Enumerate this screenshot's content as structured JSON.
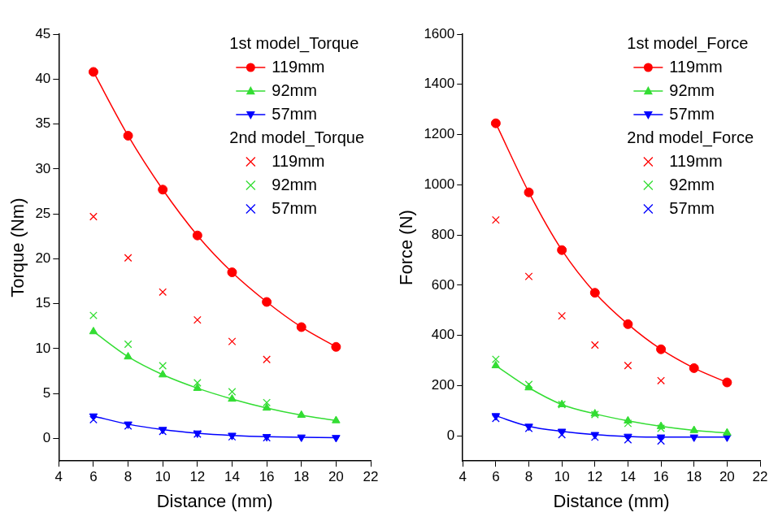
{
  "chart_data": [
    {
      "type": "line",
      "x_label": "Distance (mm)",
      "y_label": "Torque (Nm)",
      "xlim": [
        4,
        22
      ],
      "xticks": [
        4,
        6,
        8,
        10,
        12,
        14,
        16,
        18,
        20,
        22
      ],
      "ylim": [
        -2.5,
        45
      ],
      "yticks": [
        0,
        5,
        10,
        15,
        20,
        25,
        30,
        35,
        40,
        45
      ],
      "grid": false,
      "series": [
        {
          "name": "119mm",
          "group": "1st model_Torque",
          "color": "#ff0000",
          "marker": "circle",
          "line_style": "solid",
          "x": [
            6,
            8,
            10,
            12,
            14,
            16,
            18,
            20
          ],
          "values": [
            40.8,
            33.7,
            27.7,
            22.6,
            18.5,
            15.2,
            12.4,
            10.2
          ]
        },
        {
          "name": "92mm",
          "group": "1st model_Torque",
          "color": "#33dd33",
          "marker": "triangle",
          "line_style": "solid",
          "x": [
            6,
            8,
            10,
            12,
            14,
            16,
            18,
            20
          ],
          "values": [
            11.9,
            9.1,
            7.1,
            5.6,
            4.4,
            3.4,
            2.6,
            2.0
          ]
        },
        {
          "name": "57mm",
          "group": "1st model_Torque",
          "color": "#0000ff",
          "marker": "triangle_down",
          "line_style": "solid",
          "x": [
            6,
            8,
            10,
            12,
            14,
            16,
            18,
            20
          ],
          "values": [
            2.5,
            1.6,
            1.0,
            0.6,
            0.35,
            0.2,
            0.15,
            0.1
          ]
        },
        {
          "name": "119mm",
          "group": "2nd model_Torque",
          "color": "#ff0000",
          "marker": "cross",
          "line_style": "none",
          "x": [
            6,
            8,
            10,
            12,
            14,
            16
          ],
          "values": [
            24.7,
            20.1,
            16.3,
            13.2,
            10.8,
            8.8
          ]
        },
        {
          "name": "92mm",
          "group": "2nd model_Torque",
          "color": "#33dd33",
          "marker": "cross",
          "line_style": "none",
          "x": [
            6,
            8,
            10,
            12,
            14,
            16
          ],
          "values": [
            13.7,
            10.5,
            8.1,
            6.2,
            5.2,
            4.0
          ]
        },
        {
          "name": "57mm",
          "group": "2nd model_Torque",
          "color": "#0000ff",
          "marker": "cross",
          "line_style": "none",
          "x": [
            6,
            8,
            10,
            12,
            14,
            16
          ],
          "values": [
            2.1,
            1.4,
            0.8,
            0.5,
            0.2,
            0.1
          ]
        }
      ]
    },
    {
      "type": "line",
      "x_label": "Distance (mm)",
      "y_label": "Force (N)",
      "xlim": [
        4,
        22
      ],
      "xticks": [
        4,
        6,
        8,
        10,
        12,
        14,
        16,
        18,
        20,
        22
      ],
      "ylim": [
        -100,
        1600
      ],
      "yticks": [
        0,
        200,
        400,
        600,
        800,
        1000,
        1200,
        1400,
        1600
      ],
      "grid": false,
      "series": [
        {
          "name": "119mm",
          "group": "1st model_Force",
          "color": "#ff0000",
          "marker": "circle",
          "line_style": "solid",
          "x": [
            6,
            8,
            10,
            12,
            14,
            16,
            18,
            20
          ],
          "values": [
            1245,
            970,
            740,
            570,
            445,
            345,
            270,
            213
          ]
        },
        {
          "name": "92mm",
          "group": "1st model_Force",
          "color": "#33dd33",
          "marker": "triangle",
          "line_style": "solid",
          "x": [
            6,
            8,
            10,
            12,
            14,
            16,
            18,
            20
          ],
          "values": [
            280,
            192,
            125,
            88,
            60,
            38,
            22,
            12
          ]
        },
        {
          "name": "57mm",
          "group": "1st model_Force",
          "color": "#0000ff",
          "marker": "triangle_down",
          "line_style": "solid",
          "x": [
            6,
            8,
            10,
            12,
            14,
            16,
            18,
            20
          ],
          "values": [
            80,
            38,
            18,
            5,
            -2,
            -5,
            -5,
            -5
          ]
        },
        {
          "name": "119mm",
          "group": "2nd model_Force",
          "color": "#ff0000",
          "marker": "cross",
          "line_style": "none",
          "x": [
            6,
            8,
            10,
            12,
            14,
            16
          ],
          "values": [
            860,
            635,
            478,
            362,
            280,
            220
          ]
        },
        {
          "name": "92mm",
          "group": "2nd model_Force",
          "color": "#33dd33",
          "marker": "cross",
          "line_style": "none",
          "x": [
            6,
            8,
            10,
            12,
            14,
            16
          ],
          "values": [
            305,
            205,
            125,
            85,
            50,
            30
          ]
        },
        {
          "name": "57mm",
          "group": "2nd model_Force",
          "color": "#0000ff",
          "marker": "cross",
          "line_style": "none",
          "x": [
            6,
            8,
            10,
            12,
            14,
            16
          ],
          "values": [
            70,
            30,
            5,
            -5,
            -15,
            -20
          ]
        }
      ]
    }
  ]
}
